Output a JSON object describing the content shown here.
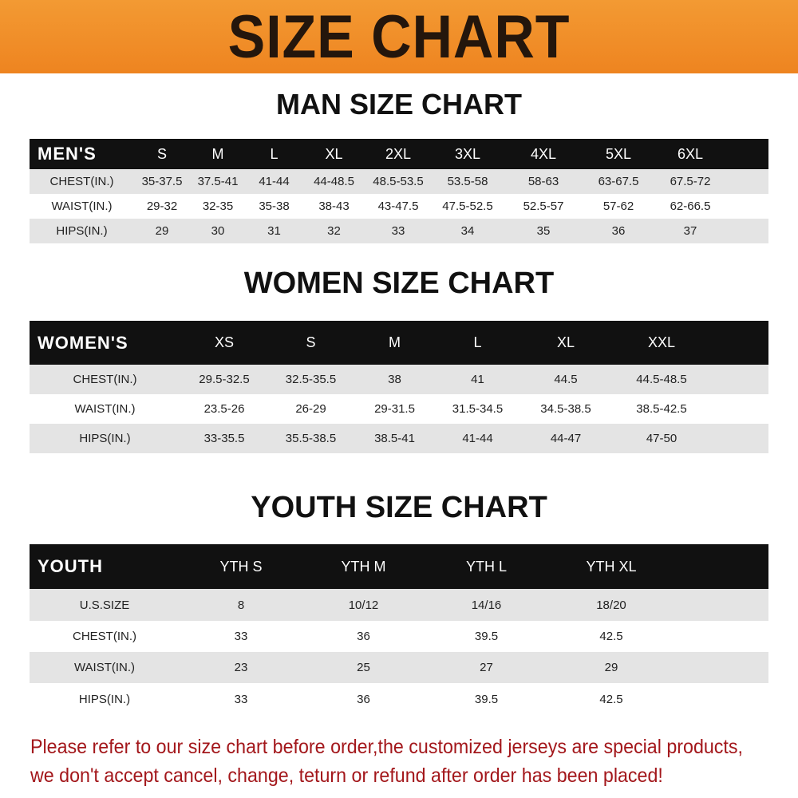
{
  "banner_title": "SIZE CHART",
  "tables": [
    {
      "title": "MAN SIZE CHART",
      "header_label": "MEN'S",
      "sizes": [
        "S",
        "M",
        "L",
        "XL",
        "2XL",
        "3XL",
        "4XL",
        "5XL",
        "6XL"
      ],
      "rows": [
        {
          "label": "CHEST(IN.)",
          "values": [
            "35-37.5",
            "37.5-41",
            "41-44",
            "44-48.5",
            "48.5-53.5",
            "53.5-58",
            "58-63",
            "63-67.5",
            "67.5-72"
          ]
        },
        {
          "label": "WAIST(IN.)",
          "values": [
            "29-32",
            "32-35",
            "35-38",
            "38-43",
            "43-47.5",
            "47.5-52.5",
            "52.5-57",
            "57-62",
            "62-66.5"
          ]
        },
        {
          "label": "HIPS(IN.)",
          "values": [
            "29",
            "30",
            "31",
            "32",
            "33",
            "34",
            "35",
            "36",
            "37"
          ]
        }
      ]
    },
    {
      "title": "WOMEN SIZE CHART",
      "header_label": "WOMEN'S",
      "sizes": [
        "XS",
        "S",
        "M",
        "L",
        "XL",
        "XXL"
      ],
      "rows": [
        {
          "label": "CHEST(IN.)",
          "values": [
            "29.5-32.5",
            "32.5-35.5",
            "38",
            "41",
            "44.5",
            "44.5-48.5"
          ]
        },
        {
          "label": "WAIST(IN.)",
          "values": [
            "23.5-26",
            "26-29",
            "29-31.5",
            "31.5-34.5",
            "34.5-38.5",
            "38.5-42.5"
          ]
        },
        {
          "label": "HIPS(IN.)",
          "values": [
            "33-35.5",
            "35.5-38.5",
            "38.5-41",
            "41-44",
            "44-47",
            "47-50"
          ]
        }
      ]
    },
    {
      "title": "YOUTH SIZE CHART",
      "header_label": "YOUTH",
      "sizes": [
        "YTH S",
        "YTH M",
        "YTH L",
        "YTH XL"
      ],
      "rows": [
        {
          "label": "U.S.SIZE",
          "values": [
            "8",
            "10/12",
            "14/16",
            "18/20"
          ]
        },
        {
          "label": "CHEST(IN.)",
          "values": [
            "33",
            "36",
            "39.5",
            "42.5"
          ]
        },
        {
          "label": "WAIST(IN.)",
          "values": [
            "23",
            "25",
            "27",
            "29"
          ]
        },
        {
          "label": "HIPS(IN.)",
          "values": [
            "33",
            "36",
            "39.5",
            "42.5"
          ]
        }
      ]
    }
  ],
  "notice": {
    "line1": "Please refer to our size chart before order,the customized jerseys are special products,",
    "line2": "we don't accept cancel, change, teturn or refund after order has been placed!"
  },
  "colors": {
    "banner": "#ee8420",
    "header_row": "#111111",
    "stripe": "#e4e4e4",
    "notice_text": "#a3171b"
  }
}
